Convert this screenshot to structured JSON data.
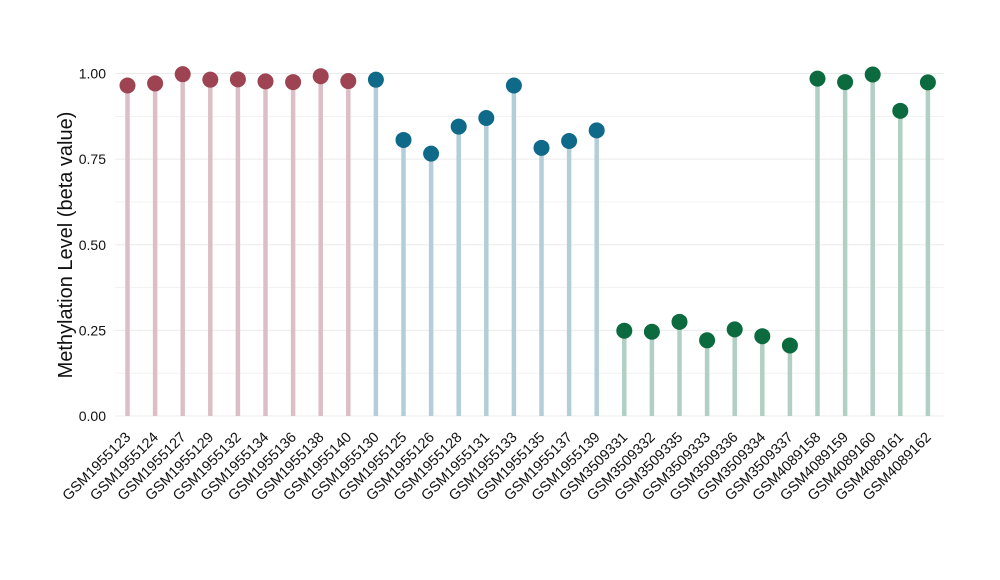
{
  "chart_data": {
    "type": "lollipop",
    "ylabel": "Methylation Level (beta value)",
    "xlabel": "",
    "ylim": [
      0,
      1
    ],
    "yticks": [
      "0.00",
      "0.25",
      "0.50",
      "0.75",
      "1.00"
    ],
    "grid": true,
    "categories": [
      "GSM1955123",
      "GSM1955124",
      "GSM1955127",
      "GSM1955129",
      "GSM1955132",
      "GSM1955134",
      "GSM1955136",
      "GSM1955138",
      "GSM1955140",
      "GSM1955130",
      "GSM1955125",
      "GSM1955126",
      "GSM1955128",
      "GSM1955131",
      "GSM1955133",
      "GSM1955135",
      "GSM1955137",
      "GSM1955139",
      "GSM3509331",
      "GSM3509332",
      "GSM3509335",
      "GSM3509333",
      "GSM3509336",
      "GSM3509334",
      "GSM3509337",
      "GSM4089158",
      "GSM4089159",
      "GSM4089160",
      "GSM4089161",
      "GSM4089162"
    ],
    "values": [
      0.965,
      0.971,
      0.998,
      0.982,
      0.983,
      0.977,
      0.975,
      0.992,
      0.978,
      0.982,
      0.806,
      0.766,
      0.845,
      0.87,
      0.965,
      0.783,
      0.803,
      0.834,
      0.249,
      0.246,
      0.275,
      0.221,
      0.253,
      0.233,
      0.206,
      0.985,
      0.975,
      0.997,
      0.891,
      0.974
    ],
    "groups": [
      0,
      0,
      0,
      0,
      0,
      0,
      0,
      0,
      0,
      1,
      1,
      1,
      1,
      1,
      1,
      1,
      1,
      1,
      2,
      2,
      2,
      2,
      2,
      2,
      2,
      2,
      2,
      2,
      2,
      2
    ],
    "group_colors": {
      "point": [
        "#9e4352",
        "#0f6a8a",
        "#0b6a3e"
      ],
      "stem": [
        "#dcbfc6",
        "#b3cdd9",
        "#afd0c2"
      ]
    },
    "grid_color": "#ebebeb"
  }
}
